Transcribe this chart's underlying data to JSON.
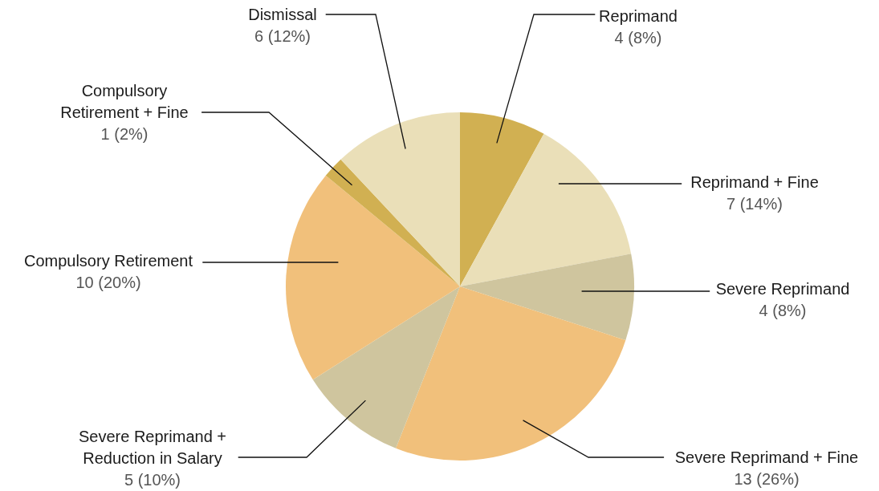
{
  "chart_data": {
    "type": "pie",
    "categories": [
      "Reprimand",
      "Reprimand + Fine",
      "Severe Reprimand",
      "Severe Reprimand + Fine",
      "Severe Reprimand + Reduction in Salary",
      "Compulsory Retirement",
      "Compulsory Retirement + Fine",
      "Dismissal"
    ],
    "values": [
      4,
      7,
      4,
      13,
      5,
      10,
      1,
      6
    ],
    "colors": [
      "#d1b052",
      "#eadfb8",
      "#cfc59e",
      "#f1c07b",
      "#cfc59e",
      "#f1c07b",
      "#d1b052",
      "#eadfb8"
    ],
    "value_labels": [
      "4 (8%)",
      "7 (14%)",
      "4 (8%)",
      "13 (26%)",
      "5 (10%)",
      "10 (20%)",
      "1 (2%)",
      "6 (12%)"
    ]
  }
}
